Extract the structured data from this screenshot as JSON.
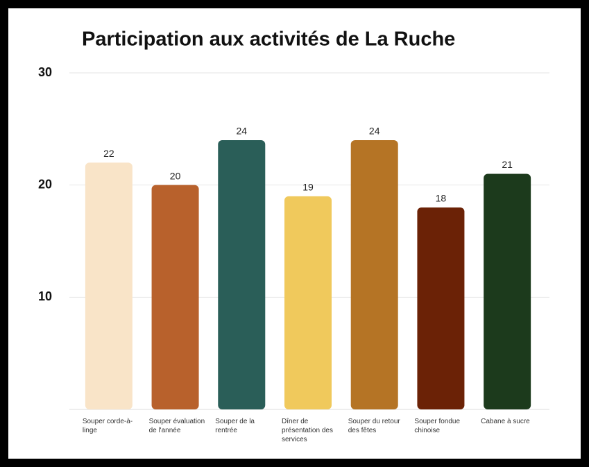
{
  "chart_data": {
    "type": "bar",
    "title": "Participation aux activités de La Ruche",
    "categories": [
      "Souper corde-à-linge",
      "Souper évaluation de l'année",
      "Souper de la rentrée",
      "Dîner de présentation des services",
      "Souper du retour des fêtes",
      "Souper fondue chinoise",
      "Cabane à sucre"
    ],
    "values": [
      22,
      20,
      24,
      19,
      24,
      18,
      21
    ],
    "colors": [
      "#f9e4c8",
      "#b8612c",
      "#2a5e58",
      "#f0c95c",
      "#b57425",
      "#6b2206",
      "#1c3a1c"
    ],
    "ylim": [
      0,
      30
    ],
    "yticks": [
      10,
      20,
      30
    ],
    "grid": true
  }
}
